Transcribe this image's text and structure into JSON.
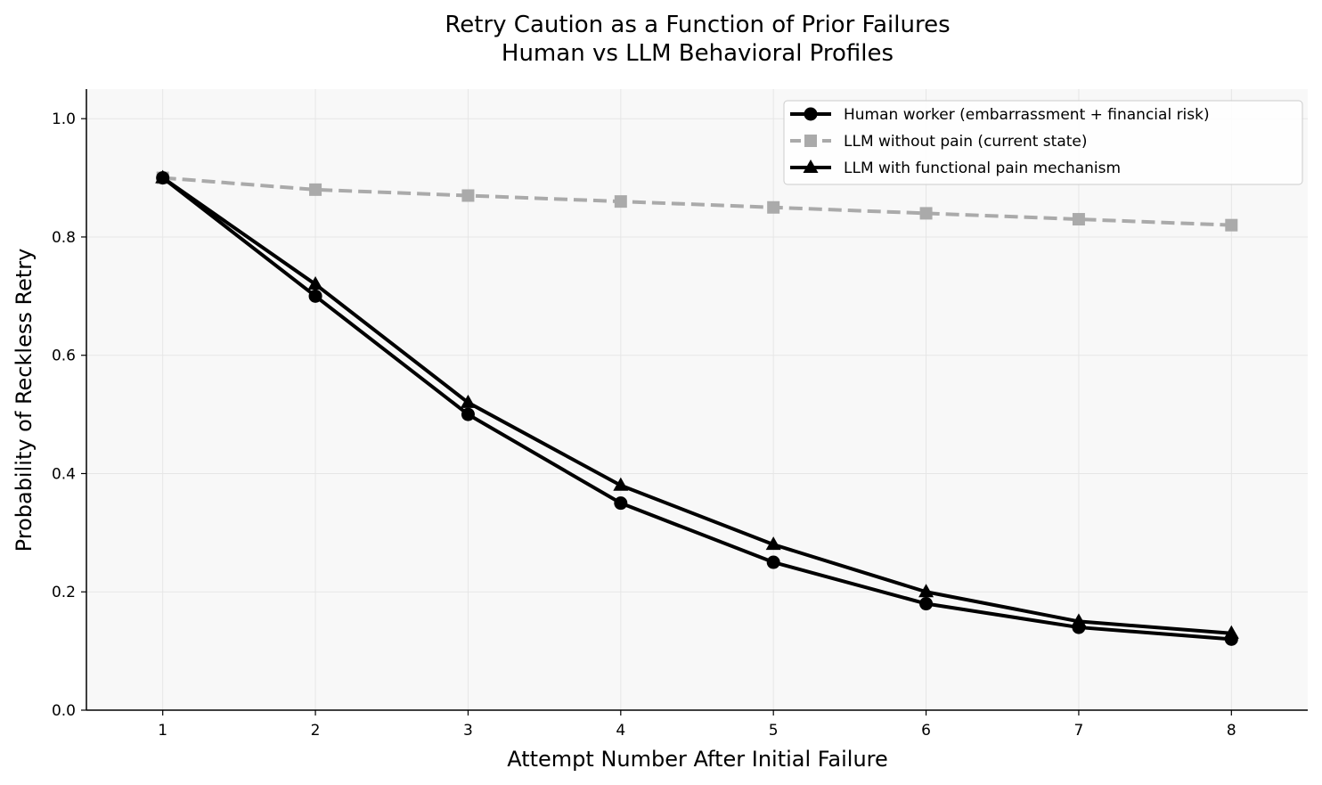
{
  "chart_data": {
    "type": "line",
    "title": "Retry Caution as a Function of Prior Failures",
    "subtitle": "Human vs LLM Behavioral Profiles",
    "xlabel": "Attempt Number After Initial Failure",
    "ylabel": "Probability of Reckless Retry",
    "x": [
      1,
      2,
      3,
      4,
      5,
      6,
      7,
      8
    ],
    "xlim": [
      0.5,
      8.5
    ],
    "ylim": [
      0,
      1.05
    ],
    "xticks": [
      "1",
      "2",
      "3",
      "4",
      "5",
      "6",
      "7",
      "8"
    ],
    "yticks": [
      "0.0",
      "0.2",
      "0.4",
      "0.6",
      "0.8",
      "1.0"
    ],
    "grid": true,
    "legend_position": "top-right",
    "series": [
      {
        "name": "Human worker (embarrassment + financial risk)",
        "values": [
          0.9,
          0.7,
          0.5,
          0.35,
          0.25,
          0.18,
          0.14,
          0.12
        ],
        "color": "#000000",
        "marker": "circle",
        "dash": "solid"
      },
      {
        "name": "LLM without pain (current state)",
        "values": [
          0.9,
          0.88,
          0.87,
          0.86,
          0.85,
          0.84,
          0.83,
          0.82
        ],
        "color": "#aaaaaa",
        "marker": "square",
        "dash": "dashed"
      },
      {
        "name": "LLM with functional pain mechanism",
        "values": [
          0.9,
          0.72,
          0.52,
          0.38,
          0.28,
          0.2,
          0.15,
          0.13
        ],
        "color": "#000000",
        "marker": "triangle",
        "dash": "solid"
      }
    ]
  }
}
